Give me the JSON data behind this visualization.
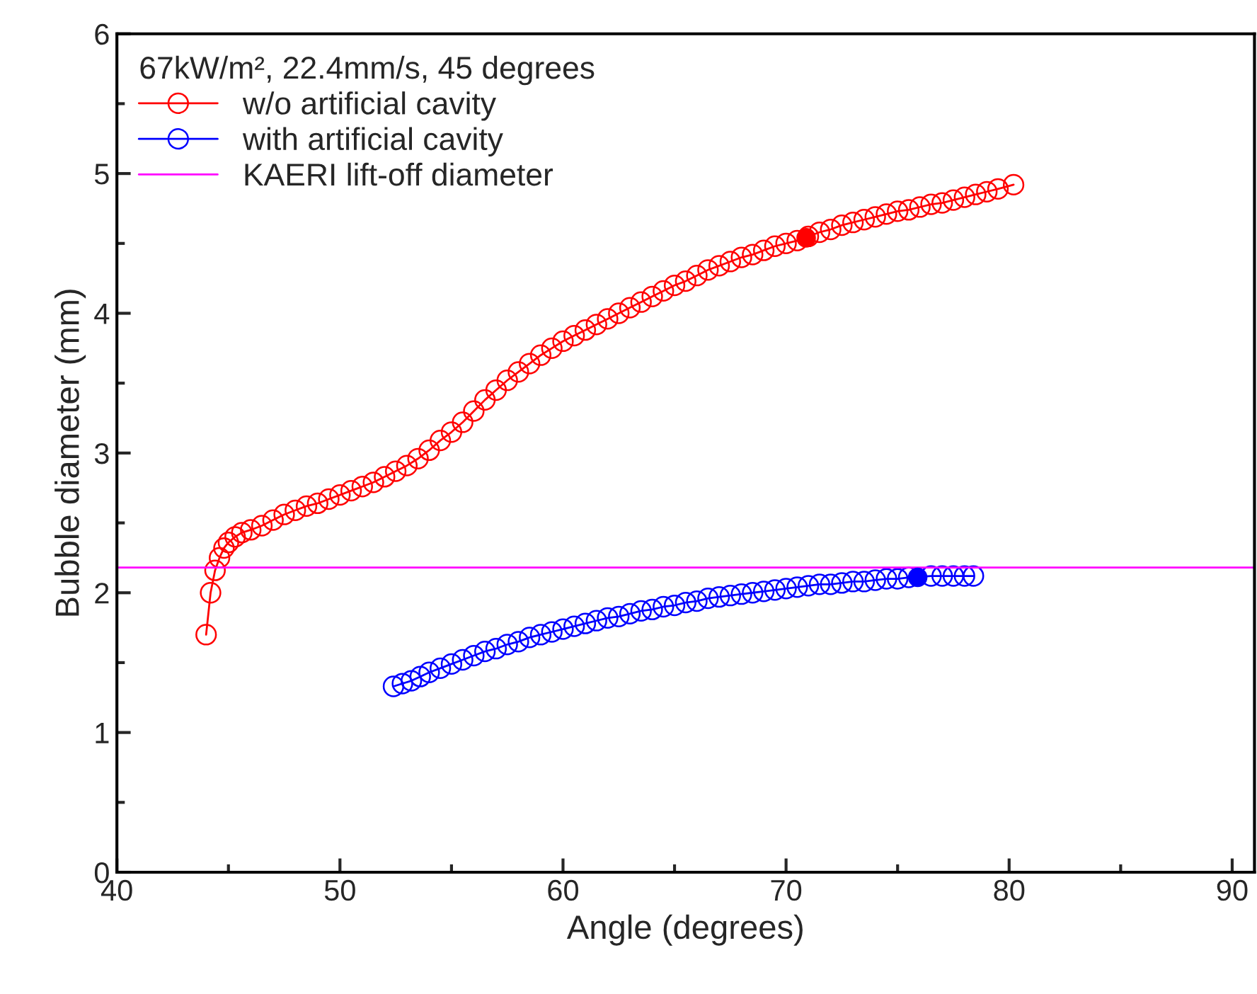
{
  "chart_data": {
    "type": "line",
    "xlabel": "Angle (degrees)",
    "ylabel": "Bubble diameter (mm)",
    "legend_title": "67kW/m², 22.4mm/s, 45 degrees",
    "legend": "top left",
    "grid": false,
    "marker": "circle",
    "line_style": "solid",
    "xlim": [
      40,
      91
    ],
    "xticks": [
      40,
      50,
      60,
      70,
      80,
      90
    ],
    "ylim": [
      0,
      6
    ],
    "yticks": [
      0,
      1,
      2,
      3,
      4,
      5,
      6
    ],
    "series": [
      {
        "name": "w/o artificial cavity",
        "color": "#ff0000",
        "x": [
          44.0,
          44.2,
          44.4,
          44.6,
          44.8,
          45.0,
          45.3,
          45.6,
          46.0,
          46.5,
          47.0,
          47.5,
          48,
          48.5,
          49,
          49.5,
          50,
          50.5,
          51,
          51.5,
          52,
          52.5,
          53,
          53.5,
          54,
          54.5,
          55,
          55.5,
          56,
          56.5,
          57,
          57.5,
          58,
          58.5,
          59,
          59.5,
          60,
          60.5,
          61,
          61.5,
          62,
          62.5,
          63,
          63.5,
          64,
          64.5,
          65,
          65.5,
          66,
          66.5,
          67,
          67.5,
          68,
          68.5,
          69,
          69.5,
          70,
          70.5,
          71,
          71.5,
          72,
          72.5,
          73,
          73.5,
          74,
          74.5,
          75,
          75.5,
          76,
          76.5,
          77,
          77.5,
          78,
          78.5,
          79,
          79.5,
          80.2
        ],
        "values": [
          1.7,
          2.0,
          2.16,
          2.25,
          2.32,
          2.36,
          2.4,
          2.43,
          2.45,
          2.48,
          2.52,
          2.56,
          2.59,
          2.62,
          2.64,
          2.67,
          2.7,
          2.73,
          2.76,
          2.79,
          2.83,
          2.87,
          2.91,
          2.96,
          3.02,
          3.09,
          3.15,
          3.22,
          3.3,
          3.38,
          3.45,
          3.52,
          3.58,
          3.64,
          3.7,
          3.75,
          3.8,
          3.84,
          3.88,
          3.92,
          3.96,
          4.0,
          4.04,
          4.08,
          4.12,
          4.16,
          4.2,
          4.23,
          4.27,
          4.31,
          4.34,
          4.37,
          4.4,
          4.42,
          4.45,
          4.48,
          4.5,
          4.52,
          4.55,
          4.58,
          4.6,
          4.63,
          4.65,
          4.67,
          4.69,
          4.71,
          4.73,
          4.74,
          4.76,
          4.78,
          4.79,
          4.81,
          4.83,
          4.85,
          4.87,
          4.89,
          4.92
        ]
      },
      {
        "name": "with artificial cavity",
        "color": "#0000ff",
        "x": [
          52.4,
          52.8,
          53.2,
          53.6,
          54,
          54.5,
          55,
          55.5,
          56,
          56.5,
          57,
          57.5,
          58,
          58.5,
          59,
          59.5,
          60,
          60.5,
          61,
          61.5,
          62,
          62.5,
          63,
          63.5,
          64,
          64.5,
          65,
          65.5,
          66,
          66.5,
          67,
          67.5,
          68,
          68.5,
          69,
          69.5,
          70,
          70.5,
          71,
          71.5,
          72,
          72.5,
          73,
          73.5,
          74,
          74.5,
          75,
          75.5,
          76.5,
          77,
          77.5,
          78,
          78.4
        ],
        "values": [
          1.33,
          1.35,
          1.37,
          1.4,
          1.43,
          1.46,
          1.49,
          1.52,
          1.55,
          1.58,
          1.6,
          1.63,
          1.65,
          1.68,
          1.7,
          1.72,
          1.74,
          1.76,
          1.78,
          1.8,
          1.82,
          1.83,
          1.85,
          1.87,
          1.88,
          1.9,
          1.91,
          1.93,
          1.94,
          1.96,
          1.97,
          1.98,
          1.99,
          2.0,
          2.01,
          2.02,
          2.03,
          2.04,
          2.05,
          2.06,
          2.06,
          2.07,
          2.08,
          2.08,
          2.09,
          2.1,
          2.1,
          2.11,
          2.12,
          2.12,
          2.12,
          2.12,
          2.12
        ]
      },
      {
        "type": "scatter",
        "color": "#ff0000",
        "x": [
          70.9
        ],
        "values": [
          4.54
        ]
      },
      {
        "type": "scatter",
        "color": "#0000ff",
        "x": [
          75.9
        ],
        "values": [
          2.11
        ]
      }
    ],
    "ref_lines": [
      {
        "axis": "y",
        "value": 2.18,
        "label": "KAERI lift-off diameter",
        "color": "#ff00ff",
        "line_style": "solid"
      }
    ]
  }
}
